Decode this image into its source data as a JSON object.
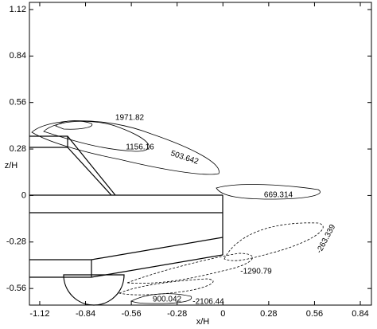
{
  "chart_data": {
    "type": "contour",
    "xlabel": "x/H",
    "ylabel": "z/H",
    "xlim": [
      -1.183,
      0.908
    ],
    "ylim": [
      -0.66,
      1.163
    ],
    "xticks": [
      -1.12,
      -0.84,
      -0.56,
      -0.28,
      0,
      0.28,
      0.56,
      0.84
    ],
    "yticks": [
      -0.56,
      -0.28,
      0,
      0.28,
      0.56,
      0.84,
      1.12
    ],
    "levels": [
      1971.82,
      1156.16,
      503.642,
      669.314,
      -263.339,
      -1290.79,
      -2106.44,
      900.042
    ],
    "color": "#000000"
  }
}
